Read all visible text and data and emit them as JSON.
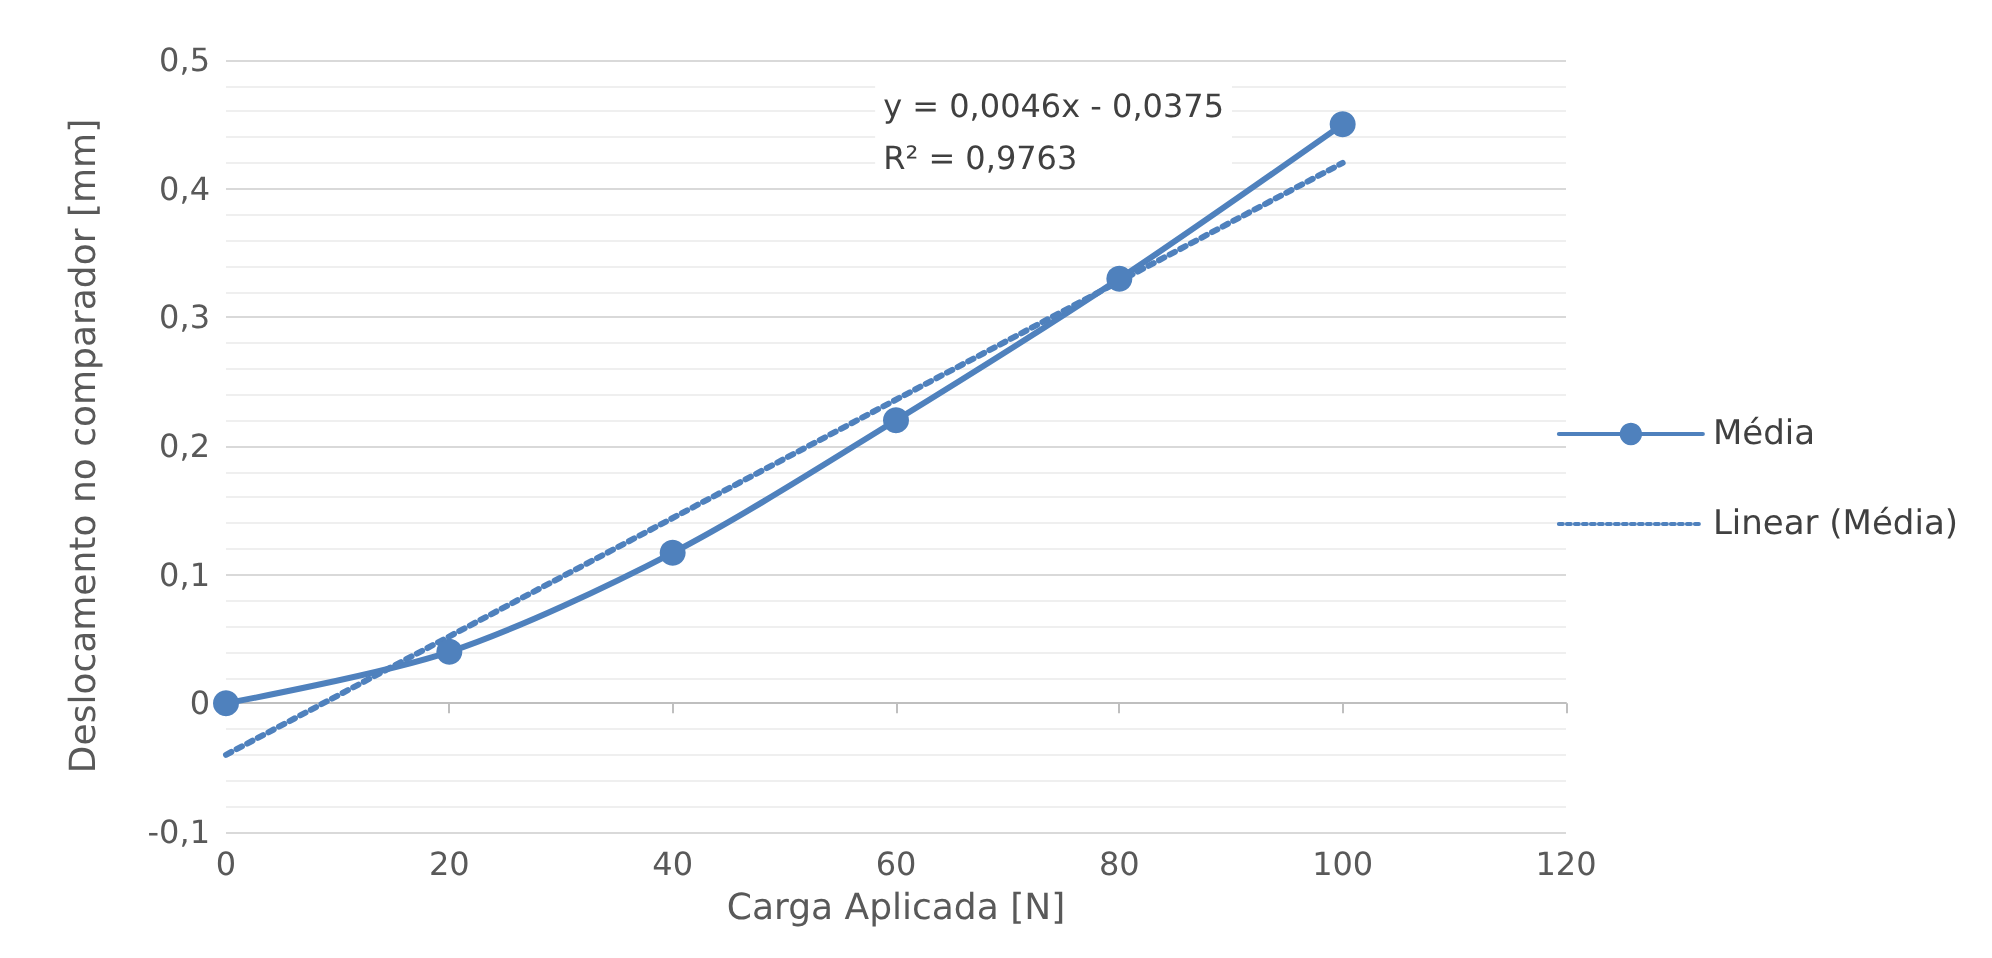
{
  "chart_data": {
    "type": "line",
    "xlabel": "Carga Aplicada [N]",
    "ylabel": "Deslocamento no comparador [mm]",
    "x": [
      0,
      20,
      40,
      60,
      80,
      100
    ],
    "series": [
      {
        "name": "Média",
        "color": "#4f81bd",
        "values": [
          0,
          0.04,
          0.117,
          0.22,
          0.33,
          0.45
        ],
        "marker": "circle",
        "line_style": "solid"
      },
      {
        "name": "Linear (Média)",
        "color": "#4f81bd",
        "type": "line",
        "x": [
          0,
          100
        ],
        "values": [
          -0.04,
          0.42
        ],
        "marker": "none",
        "line_style": "dotted"
      }
    ],
    "annotations": [
      "y = 0,0046x - 0,0375",
      "R² = 0,9763"
    ],
    "xlim": [
      0,
      120
    ],
    "xticks": [
      0,
      20,
      40,
      60,
      80,
      100,
      120
    ],
    "ylim": [
      -0.1,
      0.5
    ],
    "yticks": [
      {
        "value": -0.1,
        "label": "-0,1"
      },
      0,
      {
        "value": 0.1,
        "label": "0,1"
      },
      {
        "value": 0.2,
        "label": "0,2"
      },
      {
        "value": 0.3,
        "label": "0,3"
      },
      {
        "value": 0.4,
        "label": "0,4"
      },
      {
        "value": 0.5,
        "label": "0,5"
      }
    ],
    "grid": "y",
    "legend": "right"
  }
}
